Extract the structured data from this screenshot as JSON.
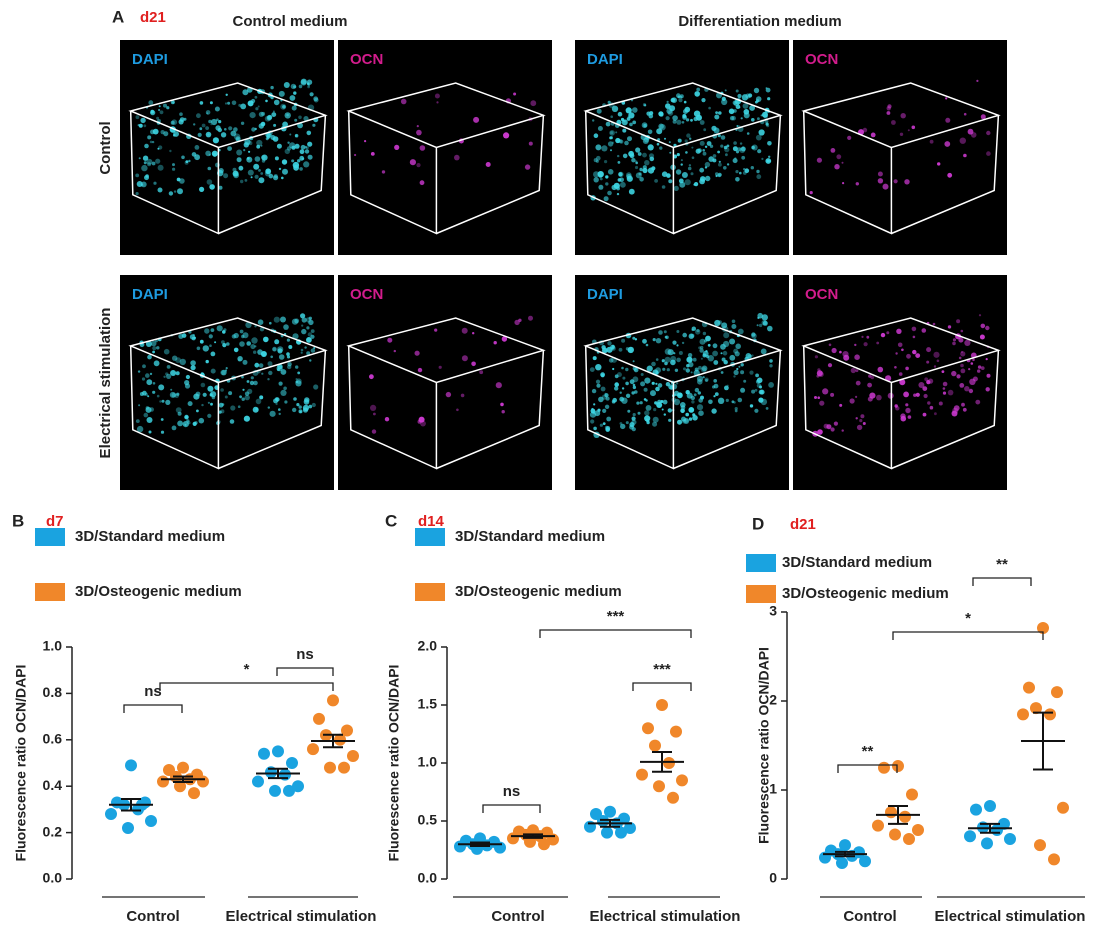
{
  "panel_a": {
    "label": "A",
    "day": "d21",
    "columns": [
      "Control medium",
      "Differentiation medium"
    ],
    "rows": [
      "Control",
      "Electrical stimulation"
    ],
    "images": [
      [
        "DAPI",
        "OCN",
        "DAPI",
        "OCN"
      ],
      [
        "DAPI",
        "OCN",
        "DAPI",
        "OCN"
      ]
    ]
  },
  "chart_data": [
    {
      "type": "dotplot",
      "panel": "B",
      "day": "d7",
      "ylabel": "Fluorescence ratio OCN/DAPI",
      "categories": [
        "Control",
        "Electrical stimulation"
      ],
      "ylim": [
        0,
        1.0
      ],
      "yticks": [
        {
          "value": 0,
          "label": "0.0"
        },
        {
          "value": 0.2,
          "label": "0.2"
        },
        {
          "value": 0.4,
          "label": "0.4"
        },
        {
          "value": 0.6,
          "label": "0.6"
        },
        {
          "value": 0.8,
          "label": "0.8"
        },
        {
          "value": 1.0,
          "label": "1.0"
        }
      ],
      "series": [
        {
          "name": "3D/Standard medium",
          "color": "#1aa3e0",
          "values": [
            [
              0.49,
              0.33,
              0.33,
              0.32,
              0.3,
              0.28,
              0.25,
              0.22,
              0.32
            ],
            [
              0.55,
              0.54,
              0.5,
              0.46,
              0.45,
              0.42,
              0.4,
              0.38,
              0.38
            ]
          ],
          "means": [
            0.32,
            0.455
          ],
          "sems": [
            0.025,
            0.02
          ]
        },
        {
          "name": "3D/Osteogenic medium",
          "color": "#f0872a",
          "values": [
            [
              0.48,
              0.47,
              0.45,
              0.44,
              0.43,
              0.42,
              0.42,
              0.4,
              0.37
            ],
            [
              0.77,
              0.69,
              0.64,
              0.62,
              0.6,
              0.56,
              0.53,
              0.48,
              0.48
            ]
          ],
          "means": [
            0.43,
            0.595
          ],
          "sems": [
            0.012,
            0.027
          ]
        }
      ],
      "annotations": [
        "ns",
        "*",
        "ns"
      ]
    },
    {
      "type": "dotplot",
      "panel": "C",
      "day": "d14",
      "ylabel": "Fluorescence ratio OCN/DAPI",
      "categories": [
        "Control",
        "Electrical stimulation"
      ],
      "ylim": [
        0,
        2.0
      ],
      "yticks": [
        {
          "value": 0,
          "label": "0.0"
        },
        {
          "value": 0.5,
          "label": "0.5"
        },
        {
          "value": 1.0,
          "label": "1.0"
        },
        {
          "value": 1.5,
          "label": "1.5"
        },
        {
          "value": 2.0,
          "label": "2.0"
        }
      ],
      "series": [
        {
          "name": "3D/Standard medium",
          "color": "#1aa3e0",
          "values": [
            [
              0.35,
              0.33,
              0.32,
              0.3,
              0.29,
              0.28,
              0.27,
              0.26
            ],
            [
              0.58,
              0.56,
              0.52,
              0.5,
              0.48,
              0.45,
              0.44,
              0.4,
              0.4
            ]
          ],
          "means": [
            0.3,
            0.48
          ],
          "sems": [
            0.015,
            0.03
          ]
        },
        {
          "name": "3D/Osteogenic medium",
          "color": "#f0872a",
          "values": [
            [
              0.42,
              0.41,
              0.4,
              0.38,
              0.37,
              0.35,
              0.34,
              0.32,
              0.3
            ],
            [
              1.5,
              1.3,
              1.27,
              1.15,
              1.0,
              0.9,
              0.85,
              0.8,
              0.7
            ]
          ],
          "means": [
            0.37,
            1.01
          ],
          "sems": [
            0.015,
            0.085
          ]
        }
      ],
      "annotations": [
        "ns",
        "***",
        "***"
      ]
    },
    {
      "type": "dotplot",
      "panel": "D",
      "day": "d21",
      "ylabel": "Fluorescence ratio OCN/DAPI",
      "categories": [
        "Control",
        "Electrical stimulation"
      ],
      "ylim": [
        0,
        3
      ],
      "yticks": [
        0,
        1,
        2,
        3
      ],
      "series": [
        {
          "name": "3D/Standard medium",
          "color": "#1aa3e0",
          "values": [
            [
              0.38,
              0.32,
              0.3,
              0.28,
              0.26,
              0.24,
              0.2,
              0.18
            ],
            [
              0.82,
              0.78,
              0.62,
              0.58,
              0.55,
              0.48,
              0.45,
              0.4
            ]
          ],
          "means": [
            0.28,
            0.57
          ],
          "sems": [
            0.025,
            0.05
          ]
        },
        {
          "name": "3D/Osteogenic medium",
          "color": "#f0872a",
          "values": [
            [
              1.27,
              1.25,
              0.95,
              0.75,
              0.7,
              0.6,
              0.55,
              0.5,
              0.45
            ],
            [
              2.82,
              2.15,
              2.1,
              1.92,
              1.85,
              1.85,
              0.8,
              0.38,
              0.22
            ]
          ],
          "means": [
            0.72,
            1.55
          ],
          "sems": [
            0.1,
            0.32
          ]
        }
      ],
      "annotations": [
        "**",
        "*",
        "**"
      ]
    }
  ]
}
